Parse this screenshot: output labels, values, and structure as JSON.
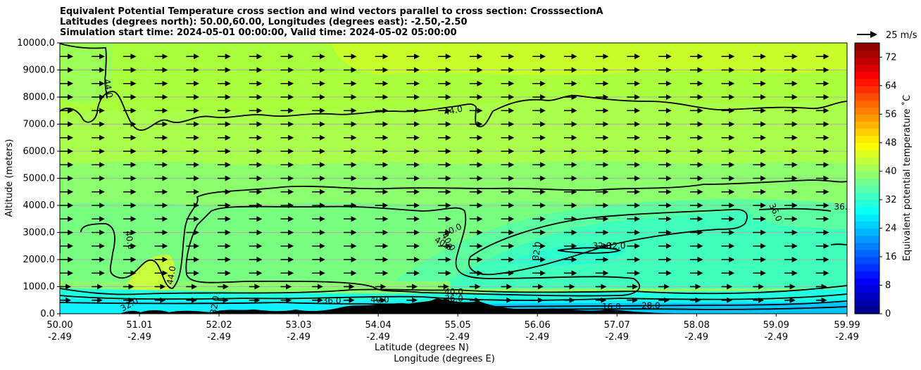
{
  "chart_data": {
    "type": "contourf",
    "title_lines": [
      "Equivalent Potential Temperature cross section and wind vectors parallel to cross section: CrosssectionA",
      "Latitudes (degrees north): 50.00,60.00, Longitudes (degrees east): -2.50,-2.50",
      "Simulation start time: 2024-05-01 00:00:00, Valid time: 2024-05-02 05:00:00"
    ],
    "ylabel": "Altitude (meters)",
    "xlabel": "Latitude (degrees N)",
    "xlabel2": "Longitude (degrees E)",
    "ylim": [
      0,
      10000
    ],
    "yticks": [
      {
        "value": 0,
        "label": "0.0"
      },
      {
        "value": 1000,
        "label": "1000.0"
      },
      {
        "value": 2000,
        "label": "2000.0"
      },
      {
        "value": 3000,
        "label": "3000.0"
      },
      {
        "value": 4000,
        "label": "4000.0"
      },
      {
        "value": 5000,
        "label": "5000.0"
      },
      {
        "value": 6000,
        "label": "6000.0"
      },
      {
        "value": 7000,
        "label": "7000.0"
      },
      {
        "value": 8000,
        "label": "8000.0"
      },
      {
        "value": 9000,
        "label": "9000.0"
      },
      {
        "value": 10000,
        "label": "10000.0"
      }
    ],
    "xlim": [
      50.0,
      59.99
    ],
    "xticks": [
      {
        "lat": 50.0,
        "label": "50.00",
        "lon": "-2.49"
      },
      {
        "lat": 51.01,
        "label": "51.01",
        "lon": "-2.49"
      },
      {
        "lat": 52.02,
        "label": "52.02",
        "lon": "-2.49"
      },
      {
        "lat": 53.03,
        "label": "53.03",
        "lon": "-2.49"
      },
      {
        "lat": 54.04,
        "label": "54.04",
        "lon": "-2.49"
      },
      {
        "lat": 55.05,
        "label": "55.05",
        "lon": "-2.49"
      },
      {
        "lat": 56.06,
        "label": "56.06",
        "lon": "-2.49"
      },
      {
        "lat": 57.07,
        "label": "57.07",
        "lon": "-2.49"
      },
      {
        "lat": 58.08,
        "label": "58.08",
        "lon": "-2.49"
      },
      {
        "lat": 59.09,
        "label": "59.09",
        "lon": "-2.49"
      },
      {
        "lat": 59.99,
        "label": "59.99",
        "lon": "-2.49"
      }
    ],
    "grid": "horizontal",
    "colorbar": {
      "label": "Equivalent potential temperature ˚C",
      "range": [
        0,
        76
      ],
      "ticks": [
        0,
        8,
        16,
        24,
        32,
        40,
        48,
        56,
        64,
        72
      ],
      "levels_step": 2
    },
    "quiver_key": {
      "label": "25 m/s",
      "value": 25
    },
    "wind": {
      "direction": "parallel to cross section, northward",
      "rows_every_m": 500,
      "columns": 25
    },
    "contour_labels": [
      {
        "text": "44.0",
        "lat": 50.58,
        "alt": 8300,
        "rotation": 80
      },
      {
        "text": "44.0",
        "lat": 55.0,
        "alt": 7400,
        "rotation": -12
      },
      {
        "text": "40.0",
        "lat": 50.85,
        "alt": 2700,
        "rotation": 80
      },
      {
        "text": "40.0",
        "lat": 55.0,
        "alt": 3000,
        "rotation": -25
      },
      {
        "text": "40.0",
        "lat": 54.9,
        "alt": 2600,
        "rotation": 60
      },
      {
        "text": "40.0",
        "lat": 54.85,
        "alt": 2500,
        "rotation": 30
      },
      {
        "text": "44.0",
        "lat": 51.45,
        "alt": 1400,
        "rotation": -80
      },
      {
        "text": "32.0",
        "lat": 56.09,
        "alt": 2300,
        "rotation": -80
      },
      {
        "text": "32.0",
        "lat": 56.88,
        "alt": 2400,
        "rotation": 0
      },
      {
        "text": "32.0",
        "lat": 57.06,
        "alt": 2400,
        "rotation": 0
      },
      {
        "text": "36.0",
        "lat": 59.05,
        "alt": 3700,
        "rotation": 65
      },
      {
        "text": "36.",
        "lat": 59.91,
        "alt": 3850,
        "rotation": 0
      },
      {
        "text": "36.0",
        "lat": 53.45,
        "alt": 380,
        "rotation": 0
      },
      {
        "text": "40.0",
        "lat": 54.06,
        "alt": 420,
        "rotation": 0
      },
      {
        "text": "40.0",
        "lat": 55.0,
        "alt": 700,
        "rotation": 0
      },
      {
        "text": "36.0",
        "lat": 55.0,
        "alt": 450,
        "rotation": 0
      },
      {
        "text": "32.0",
        "lat": 50.9,
        "alt": 250,
        "rotation": -30
      },
      {
        "text": "32.0",
        "lat": 52.0,
        "alt": 300,
        "rotation": -80
      },
      {
        "text": "28.0",
        "lat": 57.5,
        "alt": 200,
        "rotation": 0
      },
      {
        "text": "16.0",
        "lat": 57.0,
        "alt": 150,
        "rotation": 0
      }
    ]
  }
}
